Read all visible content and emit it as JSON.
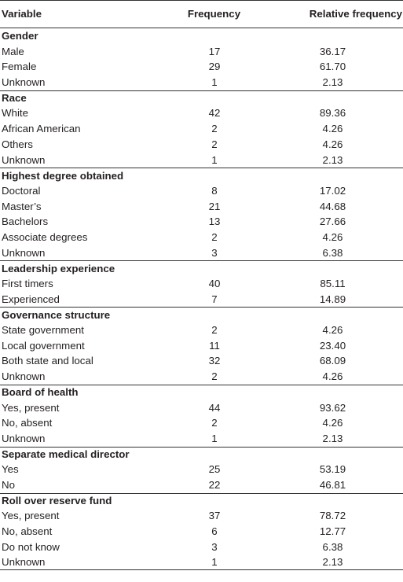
{
  "headers": {
    "variable": "Variable",
    "frequency": "Frequency",
    "relative_frequency": "Relative frequency"
  },
  "sections": [
    {
      "title": "Gender",
      "rows": [
        {
          "label": "Male",
          "freq": "17",
          "rel": "36.17"
        },
        {
          "label": "Female",
          "freq": "29",
          "rel": "61.70"
        },
        {
          "label": "Unknown",
          "freq": "1",
          "rel": "2.13"
        }
      ]
    },
    {
      "title": "Race",
      "rows": [
        {
          "label": "White",
          "freq": "42",
          "rel": "89.36"
        },
        {
          "label": "African American",
          "freq": "2",
          "rel": "4.26"
        },
        {
          "label": "Others",
          "freq": "2",
          "rel": "4.26"
        },
        {
          "label": "Unknown",
          "freq": "1",
          "rel": "2.13"
        }
      ]
    },
    {
      "title": "Highest degree obtained",
      "rows": [
        {
          "label": "Doctoral",
          "freq": "8",
          "rel": "17.02"
        },
        {
          "label": "Master’s",
          "freq": "21",
          "rel": "44.68"
        },
        {
          "label": "Bachelors",
          "freq": "13",
          "rel": "27.66"
        },
        {
          "label": "Associate degrees",
          "freq": "2",
          "rel": "4.26"
        },
        {
          "label": "Unknown",
          "freq": "3",
          "rel": "6.38"
        }
      ]
    },
    {
      "title": "Leadership experience",
      "rows": [
        {
          "label": "First timers",
          "freq": "40",
          "rel": "85.11"
        },
        {
          "label": "Experienced",
          "freq": "7",
          "rel": "14.89"
        }
      ]
    },
    {
      "title": "Governance structure",
      "rows": [
        {
          "label": "State government",
          "freq": "2",
          "rel": "4.26"
        },
        {
          "label": "Local government",
          "freq": "11",
          "rel": "23.40"
        },
        {
          "label": "Both state and local",
          "freq": "32",
          "rel": "68.09"
        },
        {
          "label": "Unknown",
          "freq": "2",
          "rel": "4.26"
        }
      ]
    },
    {
      "title": "Board of health",
      "rows": [
        {
          "label": "Yes, present",
          "freq": "44",
          "rel": "93.62"
        },
        {
          "label": "No, absent",
          "freq": "2",
          "rel": "4.26"
        },
        {
          "label": "Unknown",
          "freq": "1",
          "rel": "2.13"
        }
      ]
    },
    {
      "title": "Separate medical director",
      "rows": [
        {
          "label": "Yes",
          "freq": "25",
          "rel": "53.19"
        },
        {
          "label": "No",
          "freq": "22",
          "rel": "46.81"
        }
      ]
    },
    {
      "title": "Roll over reserve fund",
      "rows": [
        {
          "label": "Yes, present",
          "freq": "37",
          "rel": "78.72"
        },
        {
          "label": "No, absent",
          "freq": "6",
          "rel": "12.77"
        },
        {
          "label": "Do not know",
          "freq": "3",
          "rel": "6.38"
        },
        {
          "label": "Unknown",
          "freq": "1",
          "rel": "2.13"
        }
      ]
    }
  ]
}
